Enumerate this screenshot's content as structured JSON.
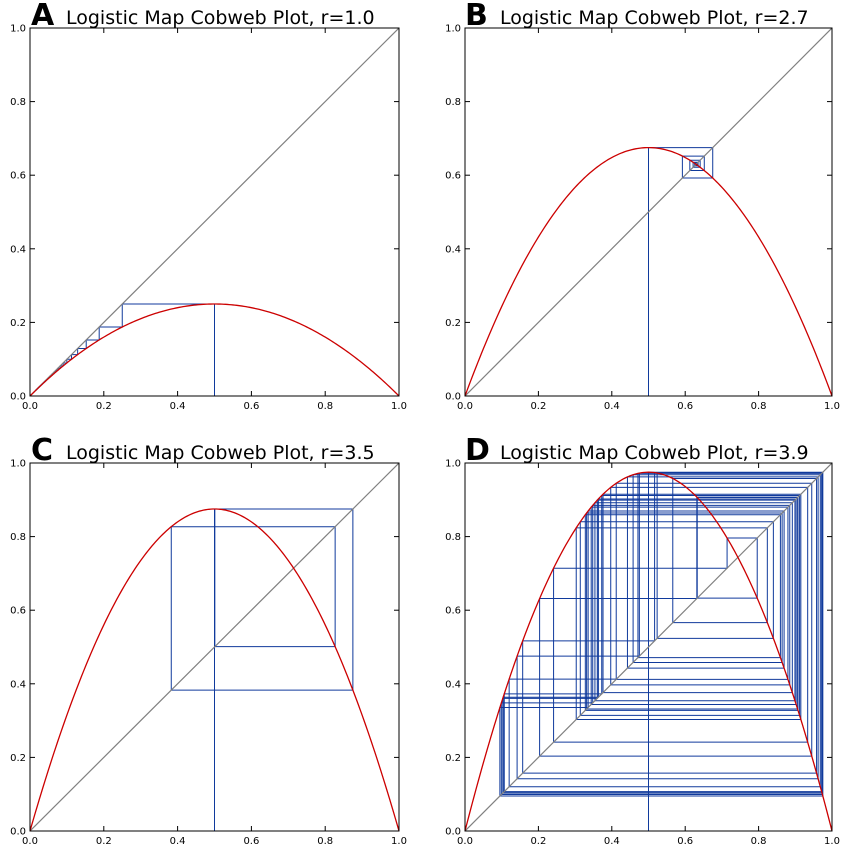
{
  "figure": {
    "title": ""
  },
  "colors": {
    "map_curve": "#cc0000",
    "identity_line": "#808080",
    "cobweb": "#103a9c",
    "frame": "#000000"
  },
  "chart_data": [
    {
      "type": "line",
      "panel_letter": "A",
      "title": "Logistic Map Cobweb Plot, r=1.0",
      "r": 1.0,
      "x0": 0.5,
      "cobweb_iterations": 60,
      "xlabel": "",
      "ylabel": "",
      "xlim": [
        0,
        1
      ],
      "ylim": [
        0,
        1
      ],
      "xticks": [
        0.0,
        0.2,
        0.4,
        0.6,
        0.8,
        1.0
      ],
      "yticks": [
        0.0,
        0.2,
        0.4,
        0.6,
        0.8,
        1.0
      ],
      "xtick_labels": [
        "0.0",
        "0.2",
        "0.4",
        "0.6",
        "0.8",
        "1.0"
      ],
      "ytick_labels": [
        "0.0",
        "0.2",
        "0.4",
        "0.6",
        "0.8",
        "1.0"
      ],
      "grid": false,
      "legend": "none"
    },
    {
      "type": "line",
      "panel_letter": "B",
      "title": "Logistic Map Cobweb Plot, r=2.7",
      "r": 2.7,
      "x0": 0.5,
      "cobweb_iterations": 60,
      "xlabel": "",
      "ylabel": "",
      "xlim": [
        0,
        1
      ],
      "ylim": [
        0,
        1
      ],
      "xticks": [
        0.0,
        0.2,
        0.4,
        0.6,
        0.8,
        1.0
      ],
      "yticks": [
        0.0,
        0.2,
        0.4,
        0.6,
        0.8,
        1.0
      ],
      "xtick_labels": [
        "0.0",
        "0.2",
        "0.4",
        "0.6",
        "0.8",
        "1.0"
      ],
      "ytick_labels": [
        "0.0",
        "0.2",
        "0.4",
        "0.6",
        "0.8",
        "1.0"
      ],
      "grid": false,
      "legend": "none"
    },
    {
      "type": "line",
      "panel_letter": "C",
      "title": "Logistic Map Cobweb Plot, r=3.5",
      "r": 3.5,
      "x0": 0.5,
      "cobweb_iterations": 60,
      "xlabel": "",
      "ylabel": "",
      "xlim": [
        0,
        1
      ],
      "ylim": [
        0,
        1
      ],
      "xticks": [
        0.0,
        0.2,
        0.4,
        0.6,
        0.8,
        1.0
      ],
      "yticks": [
        0.0,
        0.2,
        0.4,
        0.6,
        0.8,
        1.0
      ],
      "xtick_labels": [
        "0.0",
        "0.2",
        "0.4",
        "0.6",
        "0.8",
        "1.0"
      ],
      "ytick_labels": [
        "0.0",
        "0.2",
        "0.4",
        "0.6",
        "0.8",
        "1.0"
      ],
      "grid": false,
      "legend": "none"
    },
    {
      "type": "line",
      "panel_letter": "D",
      "title": "Logistic Map Cobweb Plot, r=3.9",
      "r": 3.9,
      "x0": 0.5,
      "cobweb_iterations": 60,
      "xlabel": "",
      "ylabel": "",
      "xlim": [
        0,
        1
      ],
      "ylim": [
        0,
        1
      ],
      "xticks": [
        0.0,
        0.2,
        0.4,
        0.6,
        0.8,
        1.0
      ],
      "yticks": [
        0.0,
        0.2,
        0.4,
        0.6,
        0.8,
        1.0
      ],
      "xtick_labels": [
        "0.0",
        "0.2",
        "0.4",
        "0.6",
        "0.8",
        "1.0"
      ],
      "ytick_labels": [
        "0.0",
        "0.2",
        "0.4",
        "0.6",
        "0.8",
        "1.0"
      ],
      "grid": false,
      "legend": "none"
    }
  ]
}
